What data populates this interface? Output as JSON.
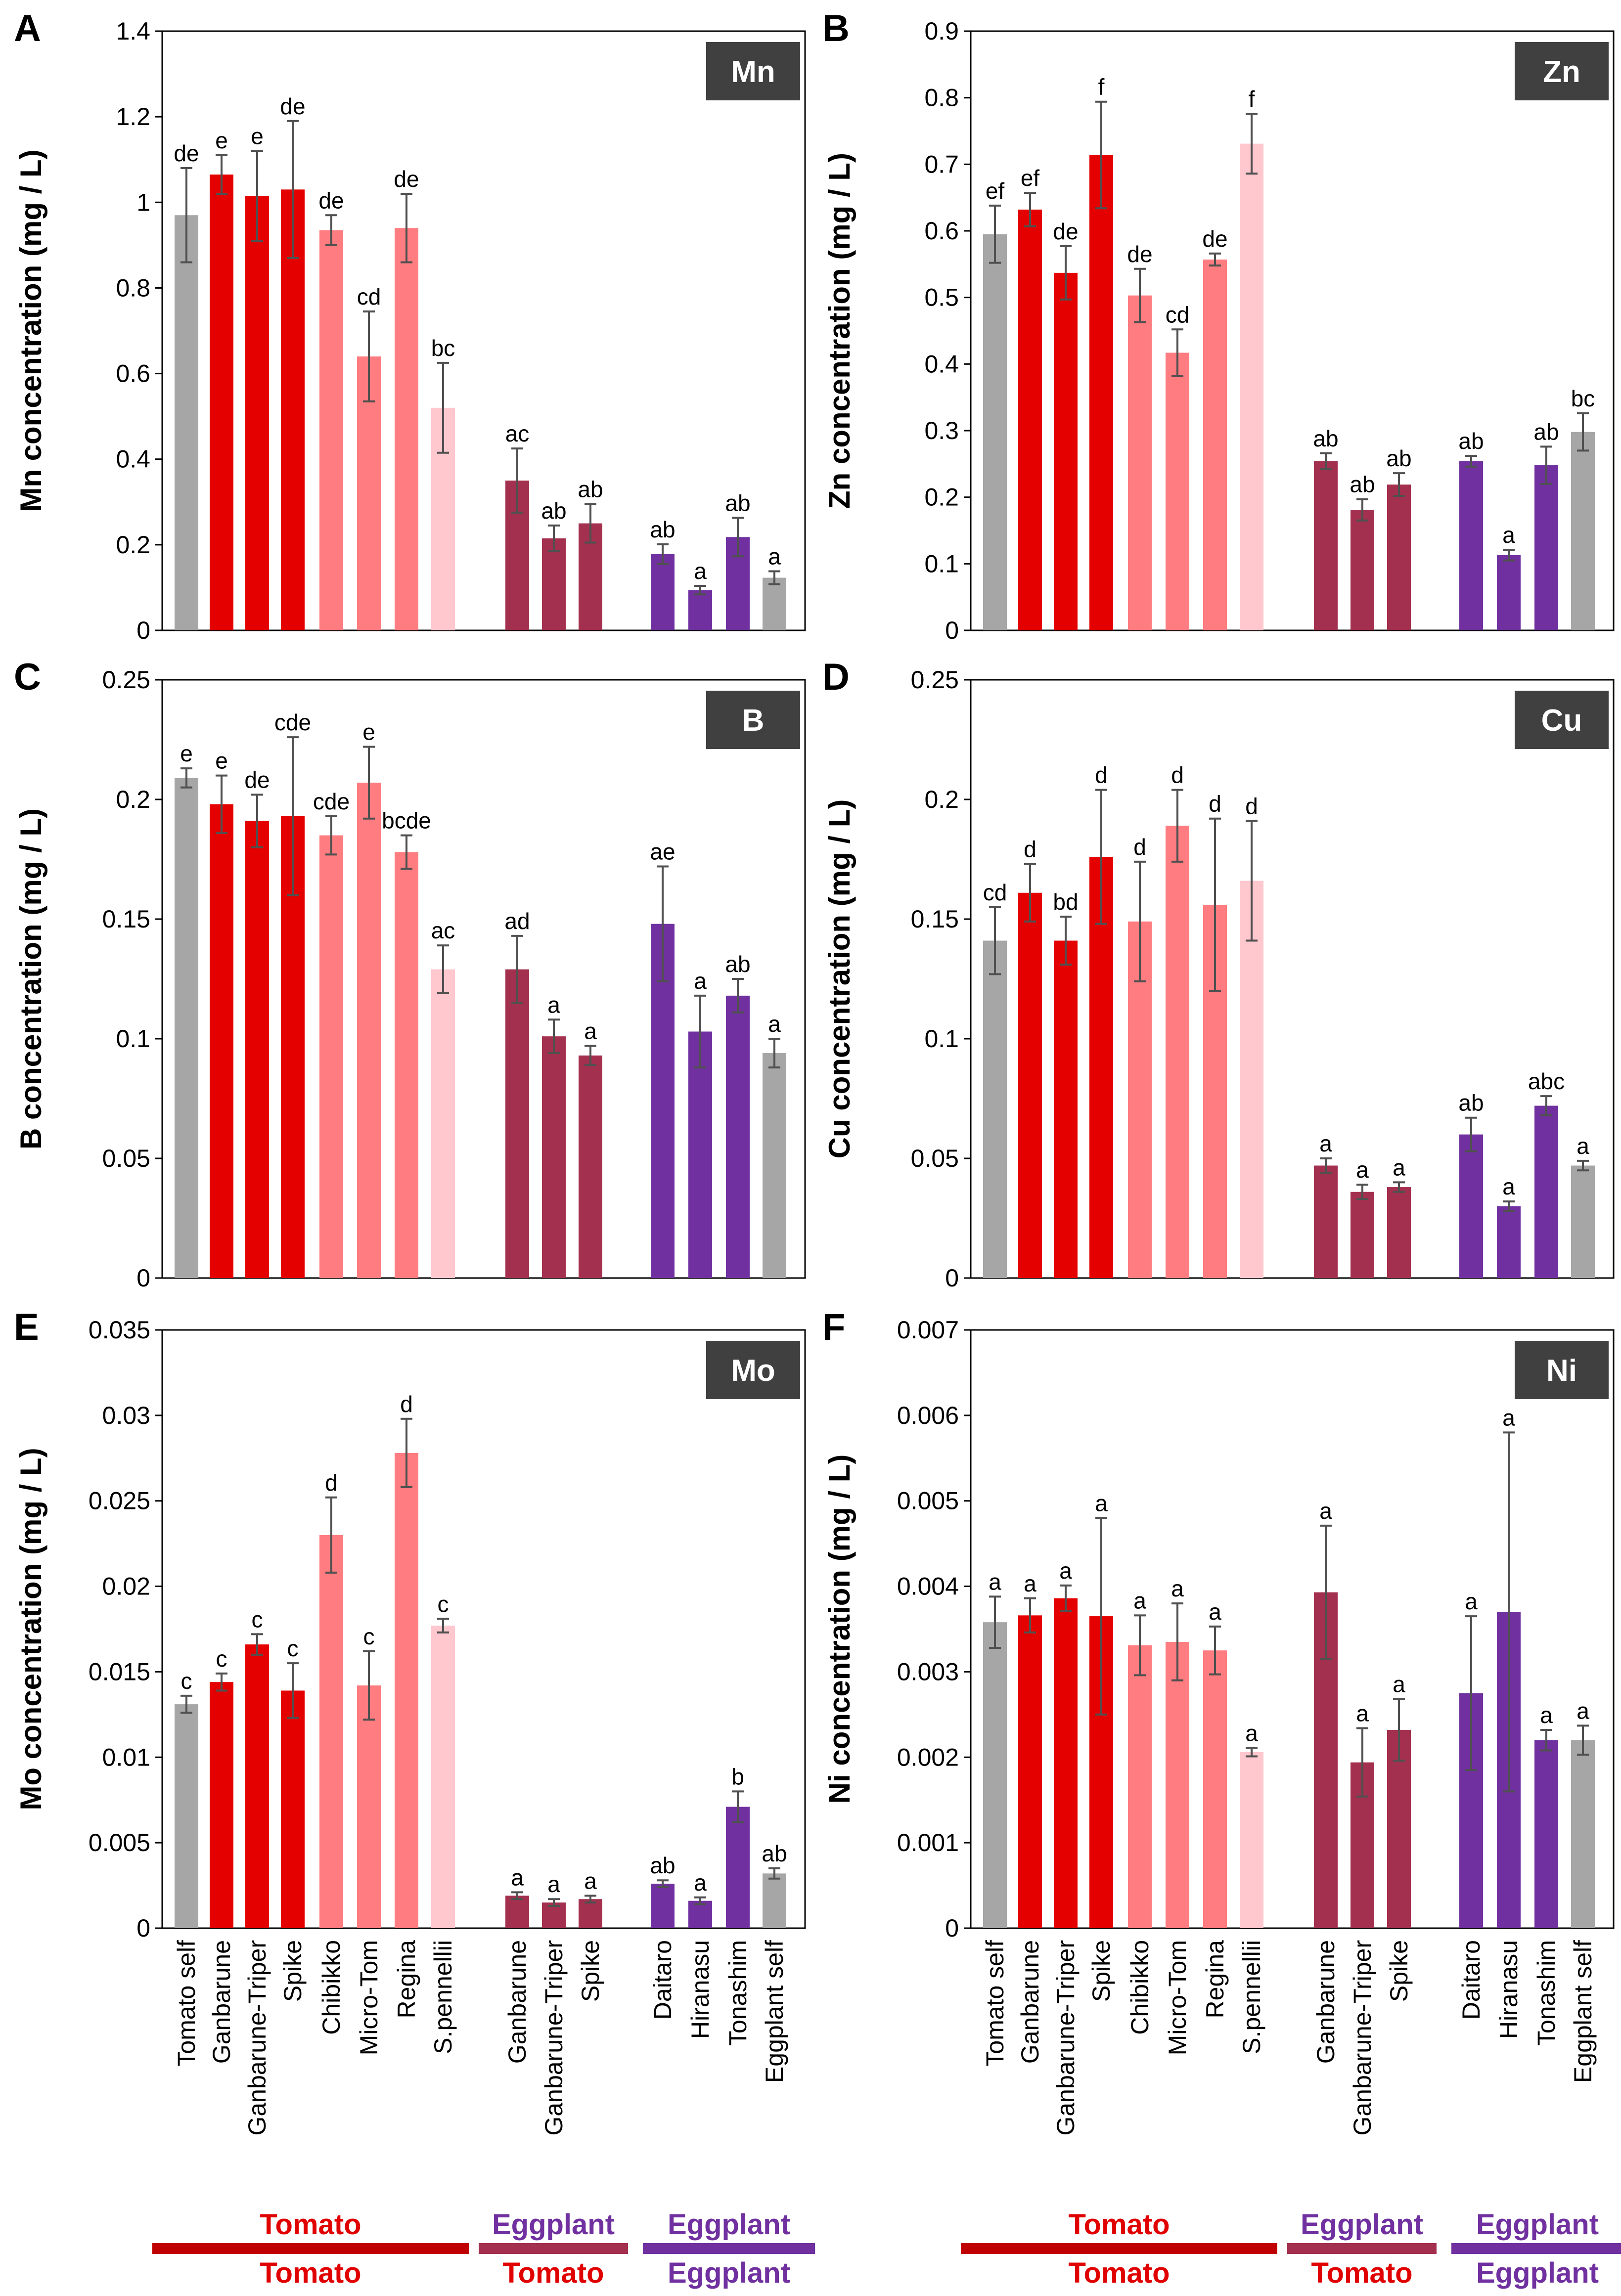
{
  "colors": {
    "self": "#a6a6a6",
    "tomato_dark": "#e50000",
    "tomato_mid": "#ff7c80",
    "tomato_light": "#ffc7ce",
    "eggplant_on_tomato": "#a3304e",
    "eggplant": "#7030a0",
    "badge": "#404040",
    "scion_tomato_text": "#e00000",
    "scion_eggplant_text": "#7030a0",
    "stock_tomato_line": "#c00000",
    "stock_eggplant_line": "#7030a0"
  },
  "categories": [
    "Tomato self",
    "Ganbarune",
    "Ganbarune-Triper",
    "Spike",
    "Chibikko",
    "Micro-Tom",
    "Regina",
    "S.pennellii",
    "Ganbarune",
    "Ganbarune-Triper",
    "Spike",
    "Daitaro",
    "Hiranasu",
    "Tonashim",
    "Eggplant self"
  ],
  "bar_colors": [
    "self",
    "tomato_dark",
    "tomato_dark",
    "tomato_dark",
    "tomato_mid",
    "tomato_mid",
    "tomato_mid",
    "tomato_light",
    "eggplant_on_tomato",
    "eggplant_on_tomato",
    "eggplant_on_tomato",
    "eggplant",
    "eggplant",
    "eggplant",
    "self"
  ],
  "groups": {
    "scion": [
      {
        "label": "Tomato",
        "color": "scion_tomato_text"
      },
      {
        "label": "Eggplant",
        "color": "scion_eggplant_text"
      },
      {
        "label": "Eggplant",
        "color": "scion_eggplant_text"
      }
    ],
    "rootstock": [
      {
        "label": "Tomato",
        "color": "scion_tomato_text",
        "line": "stock_tomato_line"
      },
      {
        "label": "Tomato",
        "color": "scion_tomato_text",
        "line": "eggplant_on_tomato"
      },
      {
        "label": "Eggplant",
        "color": "scion_eggplant_text",
        "line": "stock_eggplant_line"
      }
    ]
  },
  "chart_data": [
    {
      "panel": "A",
      "element": "Mn",
      "type": "bar",
      "ylabel": "Mn concentration (mg / L)",
      "ylim": [
        0,
        1.4
      ],
      "yticks": [
        "0",
        "0.2",
        "0.4",
        "0.6",
        "0.8",
        "1",
        "1.2",
        "1.4"
      ],
      "values": [
        0.97,
        1.065,
        1.015,
        1.03,
        0.935,
        0.64,
        0.94,
        0.52,
        0.35,
        0.215,
        0.25,
        0.178,
        0.094,
        0.218,
        0.123
      ],
      "errors": [
        0.11,
        0.045,
        0.105,
        0.16,
        0.035,
        0.105,
        0.08,
        0.105,
        0.075,
        0.03,
        0.045,
        0.023,
        0.01,
        0.045,
        0.015
      ],
      "letters": [
        "de",
        "e",
        "e",
        "de",
        "de",
        "cd",
        "de",
        "bc",
        "ac",
        "ab",
        "ab",
        "ab",
        "a",
        "ab",
        "a"
      ]
    },
    {
      "panel": "B",
      "element": "Zn",
      "type": "bar",
      "ylabel": "Zn concentration (mg / L)",
      "ylim": [
        0,
        0.9
      ],
      "yticks": [
        "0",
        "0.1",
        "0.2",
        "0.3",
        "0.4",
        "0.5",
        "0.6",
        "0.7",
        "0.8",
        "0.9"
      ],
      "values": [
        0.595,
        0.632,
        0.537,
        0.714,
        0.503,
        0.417,
        0.557,
        0.731,
        0.254,
        0.181,
        0.219,
        0.254,
        0.113,
        0.248,
        0.298
      ],
      "errors": [
        0.043,
        0.025,
        0.04,
        0.08,
        0.04,
        0.035,
        0.009,
        0.045,
        0.012,
        0.016,
        0.017,
        0.008,
        0.008,
        0.028,
        0.028
      ],
      "letters": [
        "ef",
        "ef",
        "de",
        "f",
        "de",
        "cd",
        "de",
        "f",
        "ab",
        "ab",
        "ab",
        "ab",
        "a",
        "ab",
        "bc"
      ]
    },
    {
      "panel": "C",
      "element": "B",
      "type": "bar",
      "ylabel": "B concentration (mg / L)",
      "ylim": [
        0,
        0.25
      ],
      "yticks": [
        "0",
        "0.05",
        "0.1",
        "0.15",
        "0.2",
        "0.25"
      ],
      "values": [
        0.209,
        0.198,
        0.191,
        0.193,
        0.185,
        0.207,
        0.178,
        0.129,
        0.129,
        0.101,
        0.093,
        0.148,
        0.103,
        0.118,
        0.094
      ],
      "errors": [
        0.004,
        0.012,
        0.011,
        0.033,
        0.008,
        0.015,
        0.007,
        0.01,
        0.014,
        0.007,
        0.004,
        0.024,
        0.015,
        0.007,
        0.006
      ],
      "letters": [
        "e",
        "e",
        "de",
        "cde",
        "cde",
        "e",
        "bcde",
        "ac",
        "ad",
        "a",
        "a",
        "ae",
        "a",
        "ab",
        "a"
      ]
    },
    {
      "panel": "D",
      "element": "Cu",
      "type": "bar",
      "ylabel": "Cu concentration (mg / L)",
      "ylim": [
        0,
        0.25
      ],
      "yticks": [
        "0",
        "0.05",
        "0.1",
        "0.15",
        "0.2",
        "0.25"
      ],
      "values": [
        0.141,
        0.161,
        0.141,
        0.176,
        0.149,
        0.189,
        0.156,
        0.166,
        0.047,
        0.036,
        0.038,
        0.06,
        0.03,
        0.072,
        0.047
      ],
      "errors": [
        0.014,
        0.012,
        0.01,
        0.028,
        0.025,
        0.015,
        0.036,
        0.025,
        0.003,
        0.003,
        0.002,
        0.007,
        0.002,
        0.004,
        0.002
      ],
      "letters": [
        "cd",
        "d",
        "bd",
        "d",
        "d",
        "d",
        "d",
        "d",
        "a",
        "a",
        "a",
        "ab",
        "a",
        "abc",
        "a"
      ]
    },
    {
      "panel": "E",
      "element": "Mo",
      "type": "bar",
      "ylabel": "Mo concentration (mg / L)",
      "ylim": [
        0,
        0.035
      ],
      "yticks": [
        "0",
        "0.005",
        "0.01",
        "0.015",
        "0.02",
        "0.025",
        "0.03",
        "0.035"
      ],
      "values": [
        0.0131,
        0.0144,
        0.0166,
        0.0139,
        0.023,
        0.0142,
        0.0278,
        0.0177,
        0.0019,
        0.0015,
        0.0017,
        0.0026,
        0.0016,
        0.0071,
        0.0032
      ],
      "errors": [
        0.0005,
        0.0005,
        0.0006,
        0.0016,
        0.0022,
        0.002,
        0.002,
        0.0004,
        0.0002,
        0.0002,
        0.0002,
        0.0002,
        0.0002,
        0.0009,
        0.0003
      ],
      "letters": [
        "c",
        "c",
        "c",
        "c",
        "d",
        "c",
        "d",
        "c",
        "a",
        "a",
        "a",
        "ab",
        "a",
        "b",
        "ab"
      ]
    },
    {
      "panel": "F",
      "element": "Ni",
      "type": "bar",
      "ylabel": "Ni concentration (mg / L)",
      "ylim": [
        0,
        0.007
      ],
      "yticks": [
        "0",
        "0.001",
        "0.002",
        "0.003",
        "0.004",
        "0.005",
        "0.006",
        "0.007"
      ],
      "values": [
        0.00358,
        0.00366,
        0.00386,
        0.00365,
        0.00331,
        0.00335,
        0.00325,
        0.00206,
        0.00393,
        0.00194,
        0.00232,
        0.00275,
        0.0037,
        0.0022,
        0.0022
      ],
      "errors": [
        0.0003,
        0.0002,
        0.00015,
        0.00115,
        0.00035,
        0.00045,
        0.00028,
        5e-05,
        0.00078,
        0.0004,
        0.00036,
        0.0009,
        0.0021,
        0.00012,
        0.00017
      ],
      "letters": [
        "a",
        "a",
        "a",
        "a",
        "a",
        "a",
        "a",
        "a",
        "a",
        "a",
        "a",
        "a",
        "a",
        "a",
        "a"
      ]
    }
  ]
}
